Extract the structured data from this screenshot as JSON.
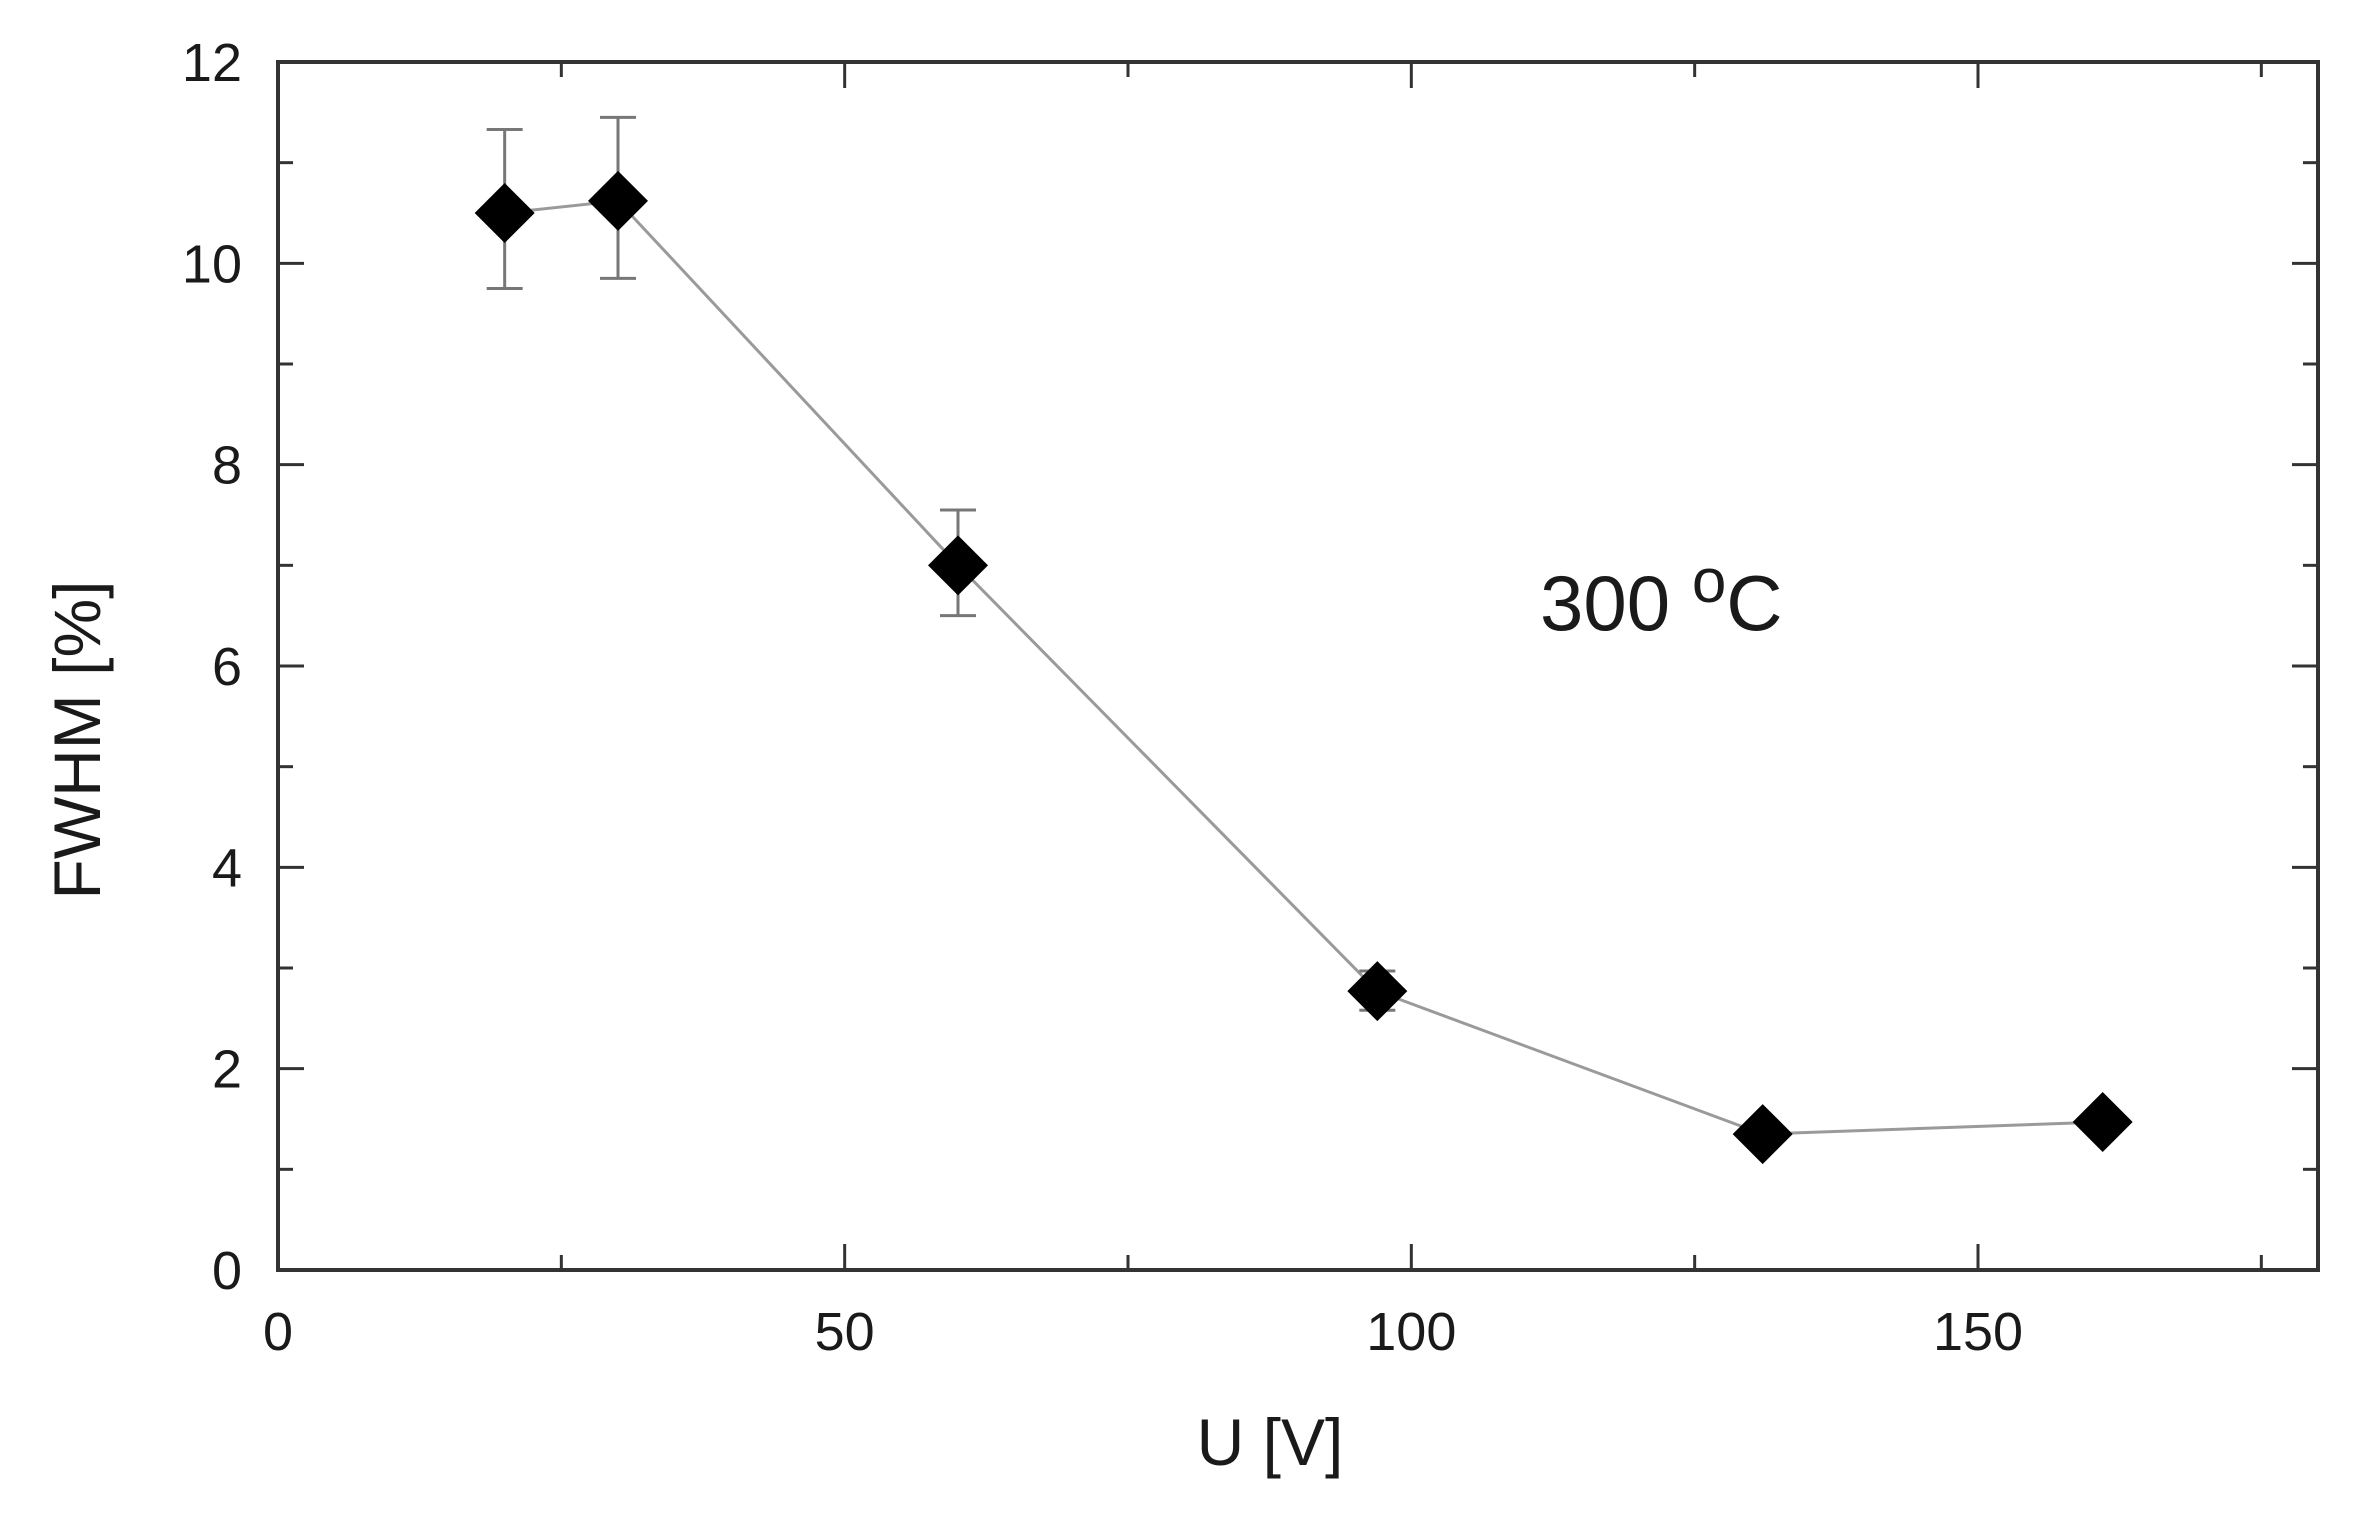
{
  "chart_data": {
    "type": "line",
    "title": "",
    "xlabel": "U [V]",
    "ylabel": "FWHM  [%]",
    "xlim": [
      0,
      180
    ],
    "ylim": [
      0,
      12
    ],
    "x_ticks": [
      0,
      50,
      100,
      150
    ],
    "x_tick_labels": [
      "0",
      "50",
      "100",
      "150"
    ],
    "y_ticks": [
      0,
      2,
      4,
      6,
      8,
      10,
      12
    ],
    "y_tick_labels": [
      "0",
      "2",
      "4",
      "6",
      "8",
      "10",
      "12"
    ],
    "annotation": {
      "value": "300 ",
      "superscript": "o",
      "unit": "C"
    },
    "grid": false,
    "legend": "none",
    "colors": {
      "marker": "#000000",
      "line": "#9a9a9a",
      "error_bar": "#777777",
      "axes": "#333333"
    },
    "series": [
      {
        "marker": "diamond",
        "x": [
          20,
          30,
          60,
          97,
          131,
          161
        ],
        "y": [
          10.5,
          10.62,
          7.0,
          2.77,
          1.35,
          1.47
        ],
        "err_low": [
          9.75,
          9.85,
          6.5,
          2.58,
          null,
          null
        ],
        "err_high": [
          11.33,
          11.45,
          7.55,
          2.97,
          null,
          null
        ]
      }
    ]
  }
}
